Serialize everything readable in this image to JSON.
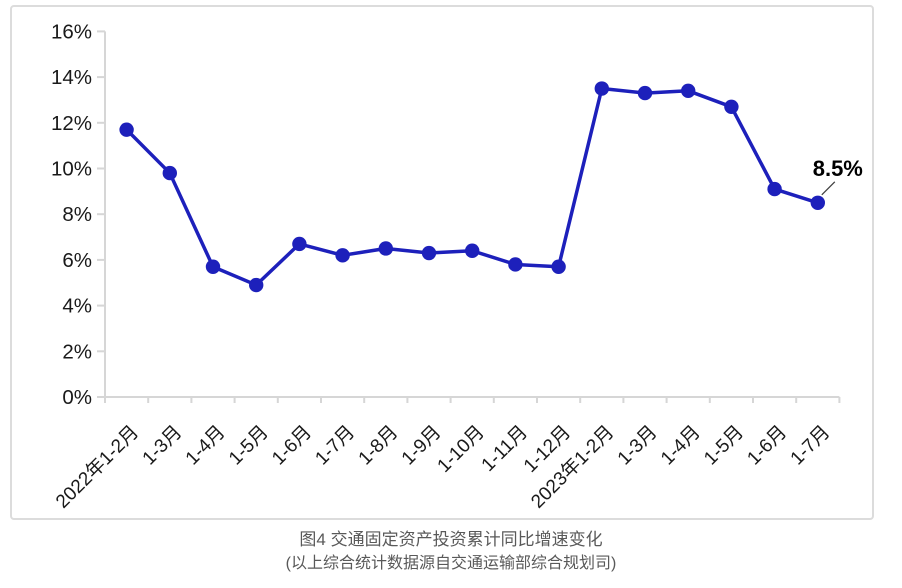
{
  "chart_data": {
    "type": "line",
    "categories": [
      "2022年1-2月",
      "1-3月",
      "1-4月",
      "1-5月",
      "1-6月",
      "1-7月",
      "1-8月",
      "1-9月",
      "1-10月",
      "1-11月",
      "1-12月",
      "2023年1-2月",
      "1-3月",
      "1-4月",
      "1-5月",
      "1-6月",
      "1-7月"
    ],
    "series": [
      {
        "name": "交通固定资产投资累计同比增速",
        "values": [
          11.7,
          9.8,
          5.7,
          4.9,
          6.7,
          6.2,
          6.5,
          6.3,
          6.4,
          5.8,
          5.7,
          13.5,
          13.3,
          13.4,
          12.7,
          9.1,
          8.5
        ]
      }
    ],
    "ylim": [
      0,
      16
    ],
    "ytick_step": 2,
    "yticks": [
      "0%",
      "2%",
      "4%",
      "6%",
      "8%",
      "10%",
      "12%",
      "14%",
      "16%"
    ],
    "grid": false,
    "legend_position": "none",
    "annotation": {
      "text": "8.5%",
      "target_index": 16
    },
    "title": "图4  交通固定资产投资累计同比增速变化",
    "subtitle": "(以上综合统计数据源自交通运输部综合规划司)",
    "colors": {
      "line": "#1d20bb",
      "marker": "#1d20bb",
      "axis": "#d6d6d6",
      "tick_label": "#1a1a1a",
      "annotation_text": "#000000",
      "annotation_leader": "#404040",
      "frame_border": "#dcdcdc",
      "caption_text": "#595959"
    }
  }
}
